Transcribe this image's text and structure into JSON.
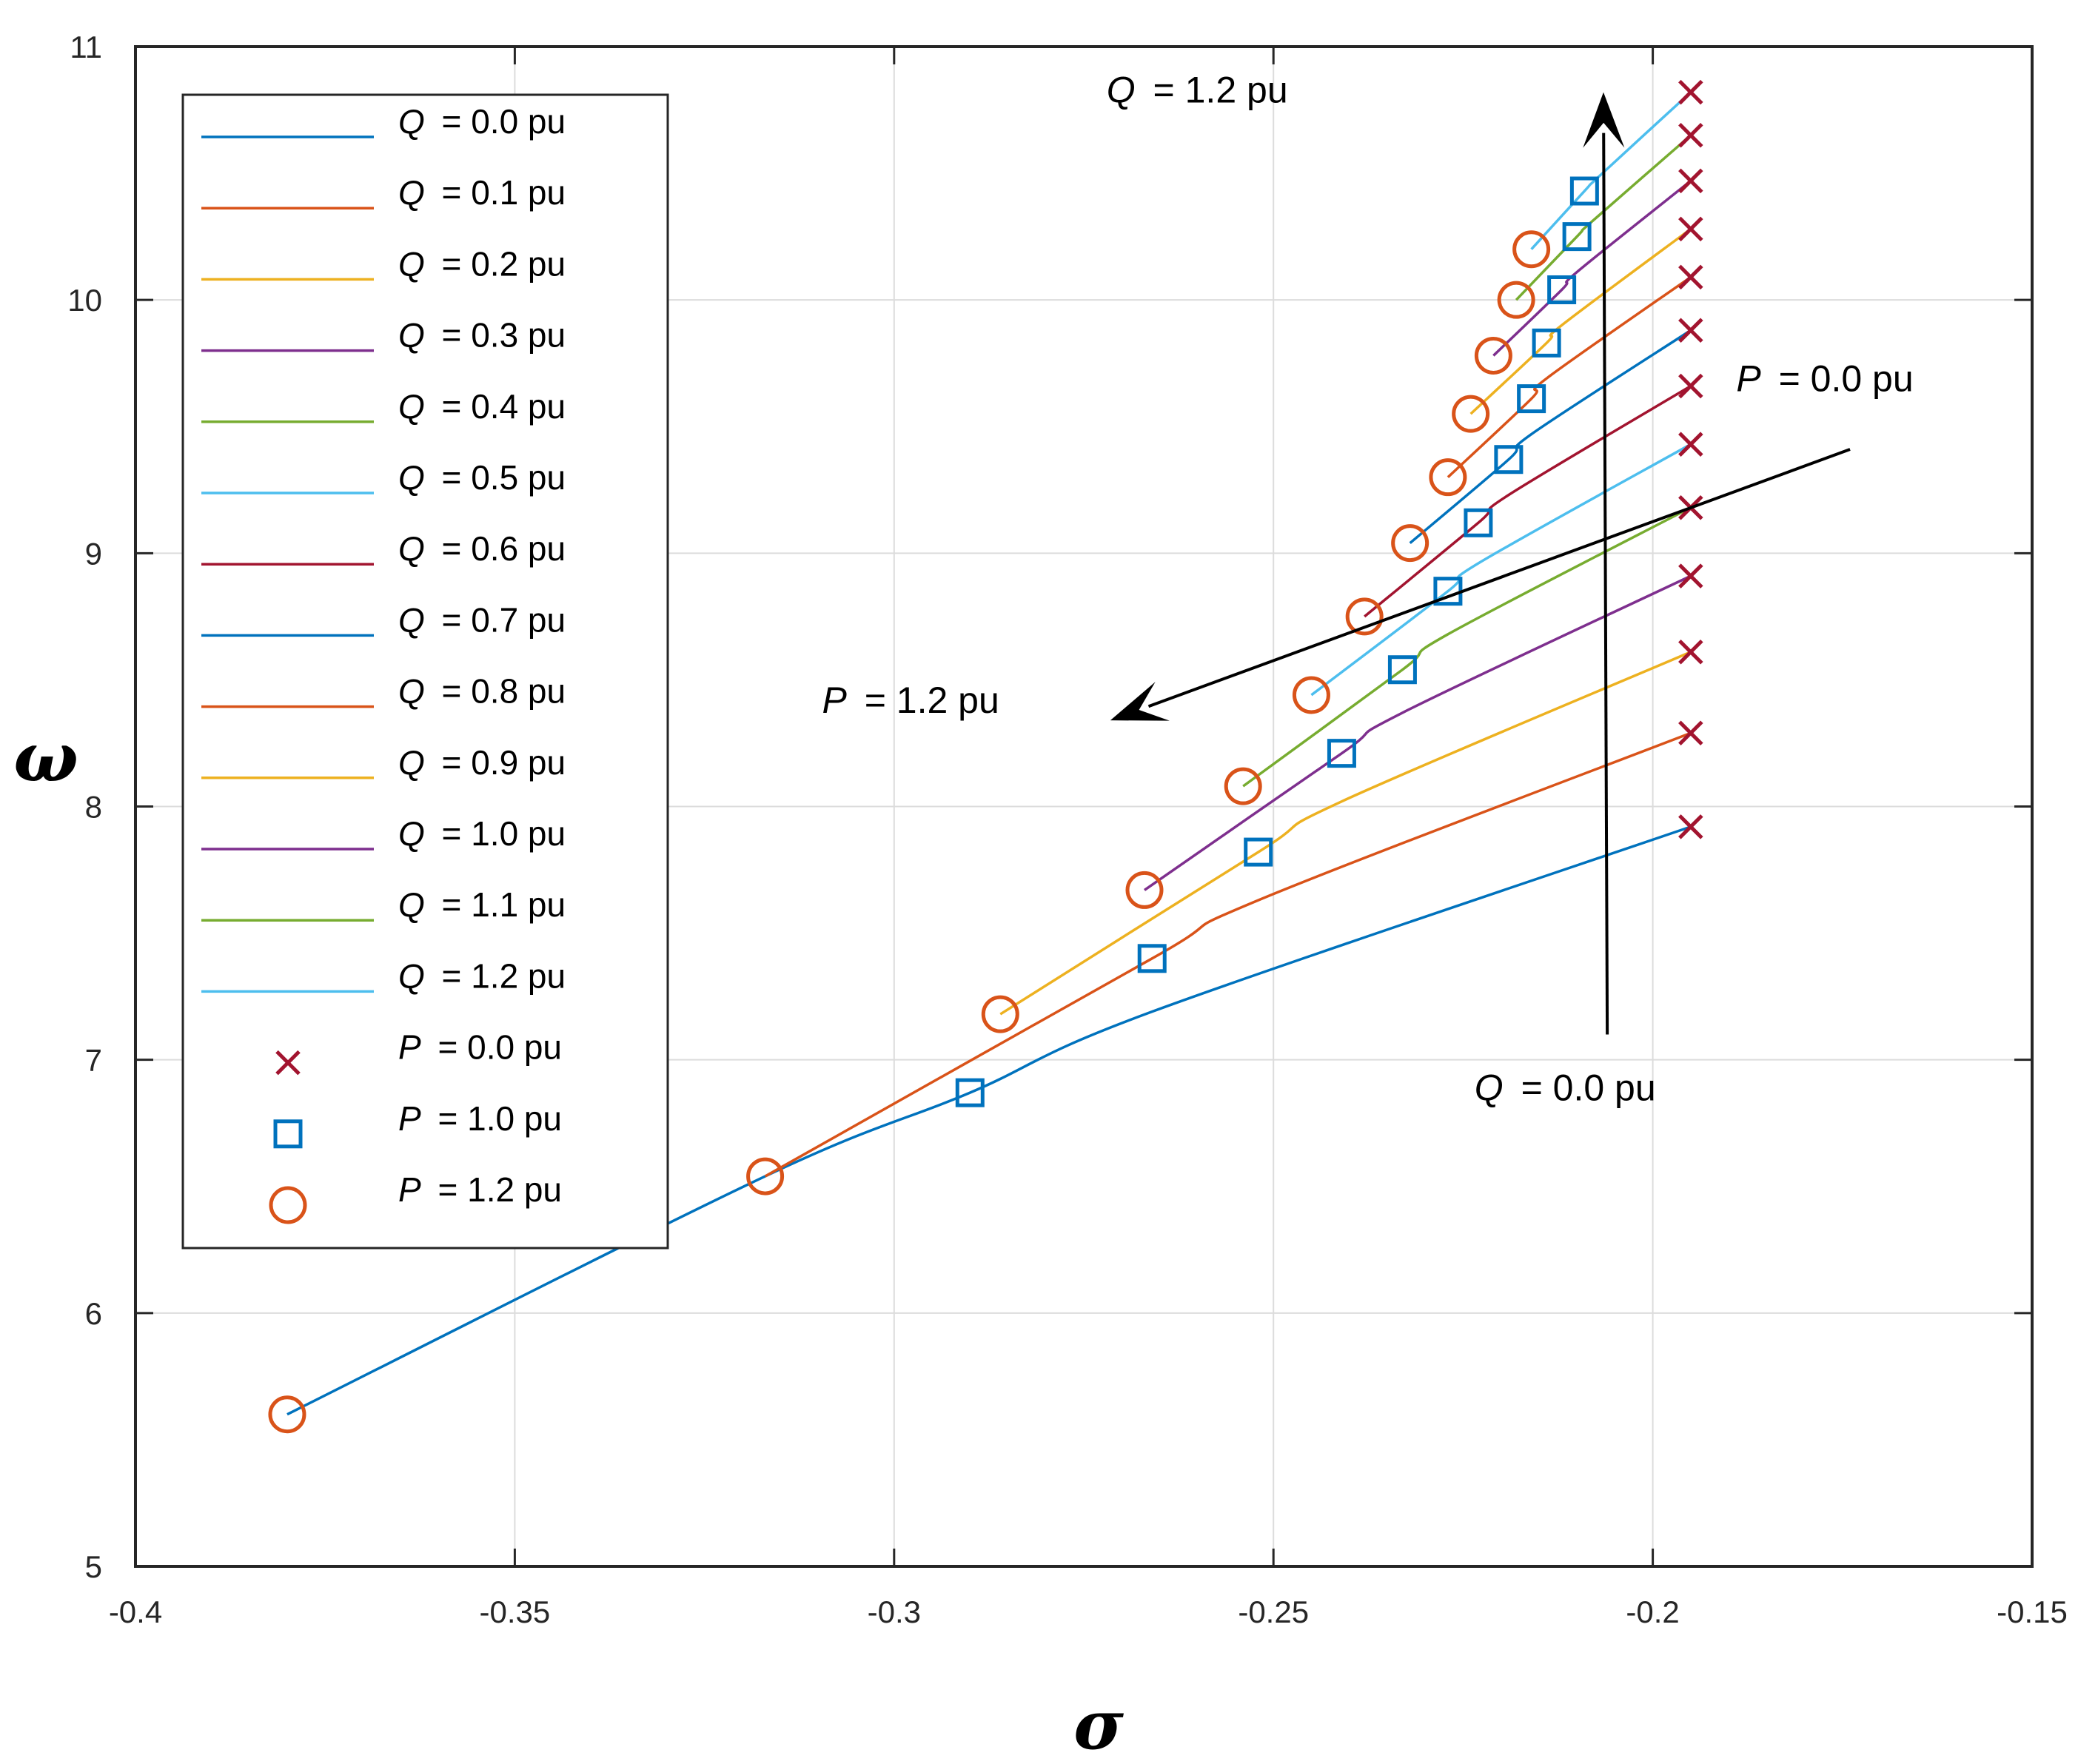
{
  "chart_data": {
    "type": "line",
    "title": "",
    "xlabel": "σ",
    "ylabel": "ω",
    "xlim": [
      -0.4,
      -0.15
    ],
    "ylim": [
      5,
      11
    ],
    "xticks": [
      -0.4,
      -0.35,
      -0.3,
      -0.25,
      -0.2,
      -0.15
    ],
    "xtick_labels": [
      "-0.4",
      "-0.35",
      "-0.3",
      "-0.25",
      "-0.2",
      "-0.15"
    ],
    "yticks": [
      5,
      6,
      7,
      8,
      9,
      10,
      11
    ],
    "ytick_labels": [
      "5",
      "6",
      "7",
      "8",
      "9",
      "10",
      "11"
    ],
    "grid": true,
    "legend_position": "top-left",
    "series": [
      {
        "label": "Q = 0.0 pu",
        "var": "Q",
        "value_text": " = 0.0 pu",
        "color": "#0072BD",
        "x": [
          -0.38,
          -0.317,
          -0.29,
          -0.266,
          -0.195
        ],
        "y": [
          5.6,
          6.54,
          6.87,
          7.19,
          7.92
        ]
      },
      {
        "label": "Q = 0.1 pu",
        "var": "Q",
        "value_text": " = 0.1 pu",
        "color": "#D95319",
        "x": [
          -0.317,
          -0.266,
          -0.252,
          -0.195
        ],
        "y": [
          6.54,
          7.4,
          7.63,
          8.29
        ]
      },
      {
        "label": "Q = 0.2 pu",
        "var": "Q",
        "value_text": " = 0.2 pu",
        "color": "#EDB120",
        "x": [
          -0.286,
          -0.252,
          -0.241,
          -0.195
        ],
        "y": [
          7.18,
          7.82,
          8.02,
          8.61
        ]
      },
      {
        "label": "Q = 0.3 pu",
        "var": "Q",
        "value_text": " = 0.3 pu",
        "color": "#7E2F8E",
        "x": [
          -0.267,
          -0.241,
          -0.233,
          -0.195
        ],
        "y": [
          7.67,
          8.21,
          8.37,
          8.91
        ]
      },
      {
        "label": "Q = 0.4 pu",
        "var": "Q",
        "value_text": " = 0.4 pu",
        "color": "#77AC30",
        "x": [
          -0.254,
          -0.233,
          -0.227,
          -0.195
        ],
        "y": [
          8.08,
          8.54,
          8.68,
          9.18
        ]
      },
      {
        "label": "Q = 0.5 pu",
        "var": "Q",
        "value_text": " = 0.5 pu",
        "color": "#4DBEEE",
        "x": [
          -0.245,
          -0.227,
          -0.223,
          -0.195
        ],
        "y": [
          8.44,
          8.85,
          8.96,
          9.43
        ]
      },
      {
        "label": "Q = 0.6 pu",
        "var": "Q",
        "value_text": " = 0.6 pu",
        "color": "#A2142F",
        "x": [
          -0.238,
          -0.223,
          -0.219,
          -0.195
        ],
        "y": [
          8.75,
          9.12,
          9.23,
          9.66
        ]
      },
      {
        "label": "Q = 0.7 pu",
        "var": "Q",
        "value_text": " = 0.7 pu",
        "color": "#0072BD",
        "x": [
          -0.232,
          -0.219,
          -0.216,
          -0.195
        ],
        "y": [
          9.04,
          9.37,
          9.47,
          9.88
        ]
      },
      {
        "label": "Q = 0.8 pu",
        "var": "Q",
        "value_text": " = 0.8 pu",
        "color": "#D95319",
        "x": [
          -0.227,
          -0.216,
          -0.214,
          -0.195
        ],
        "y": [
          9.3,
          9.61,
          9.69,
          10.09
        ]
      },
      {
        "label": "Q = 0.9 pu",
        "var": "Q",
        "value_text": " = 0.9 pu",
        "color": "#EDB120",
        "x": [
          -0.224,
          -0.214,
          -0.212,
          -0.195
        ],
        "y": [
          9.55,
          9.83,
          9.9,
          10.28
        ]
      },
      {
        "label": "Q = 1.0 pu",
        "var": "Q",
        "value_text": " = 1.0 pu",
        "color": "#7E2F8E",
        "x": [
          -0.221,
          -0.212,
          -0.21,
          -0.195
        ],
        "y": [
          9.78,
          10.04,
          10.11,
          10.47
        ]
      },
      {
        "label": "Q = 1.1 pu",
        "var": "Q",
        "value_text": " = 1.1 pu",
        "color": "#77AC30",
        "x": [
          -0.218,
          -0.21,
          -0.208,
          -0.195
        ],
        "y": [
          10.0,
          10.25,
          10.31,
          10.65
        ]
      },
      {
        "label": "Q = 1.2 pu",
        "var": "Q",
        "value_text": " = 1.2 pu",
        "color": "#4DBEEE",
        "x": [
          -0.216,
          -0.209,
          -0.207,
          -0.195
        ],
        "y": [
          10.2,
          10.43,
          10.49,
          10.82
        ]
      }
    ],
    "markers": [
      {
        "label": "P = 0.0 pu",
        "var": "P",
        "value_text": " = 0.0 pu",
        "shape": "x",
        "color": "#A2142F",
        "x": [
          -0.195,
          -0.195,
          -0.195,
          -0.195,
          -0.195,
          -0.195,
          -0.195,
          -0.195,
          -0.195,
          -0.195,
          -0.195,
          -0.195,
          -0.195
        ],
        "y": [
          7.92,
          8.29,
          8.61,
          8.91,
          9.18,
          9.43,
          9.66,
          9.88,
          10.09,
          10.28,
          10.47,
          10.65,
          10.82
        ]
      },
      {
        "label": "P = 1.0 pu",
        "var": "P",
        "value_text": " = 1.0 pu",
        "shape": "square",
        "color": "#0072BD",
        "x": [
          -0.29,
          -0.266,
          -0.252,
          -0.241,
          -0.233,
          -0.227,
          -0.223,
          -0.219,
          -0.216,
          -0.214,
          -0.212,
          -0.21,
          -0.209
        ],
        "y": [
          6.87,
          7.4,
          7.82,
          8.21,
          8.54,
          8.85,
          9.12,
          9.37,
          9.61,
          9.83,
          10.04,
          10.25,
          10.43
        ]
      },
      {
        "label": "P = 1.2 pu",
        "var": "P",
        "value_text": " = 1.2 pu",
        "shape": "circle",
        "color": "#D95319",
        "x": [
          -0.38,
          -0.317,
          -0.286,
          -0.267,
          -0.254,
          -0.245,
          -0.238,
          -0.232,
          -0.227,
          -0.224,
          -0.221,
          -0.218,
          -0.216
        ],
        "y": [
          5.6,
          6.54,
          7.18,
          7.67,
          8.08,
          8.44,
          8.75,
          9.04,
          9.3,
          9.55,
          9.78,
          10.0,
          10.2
        ]
      }
    ],
    "annotations": [
      {
        "var": "Q",
        "text": " = 1.2 pu",
        "x": -0.272,
        "y": 10.78
      },
      {
        "var": "P",
        "text": " = 0.0 pu",
        "x": -0.189,
        "y": 9.64
      },
      {
        "var": "P",
        "text": " = 1.2 pu",
        "x": -0.3095,
        "y": 8.37
      },
      {
        "var": "Q",
        "text": " = 0.0 pu",
        "x": -0.2235,
        "y": 6.84
      }
    ],
    "arrows": [
      {
        "from": [
          -0.206,
          7.1
        ],
        "to": [
          -0.2065,
          10.82
        ]
      },
      {
        "from": [
          -0.174,
          9.41
        ],
        "to": [
          -0.2715,
          8.34
        ]
      }
    ]
  }
}
